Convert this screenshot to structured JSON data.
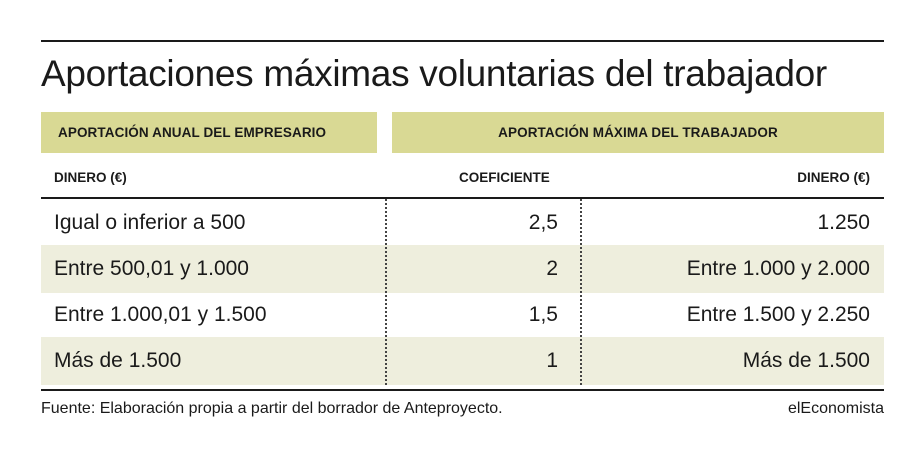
{
  "title": "Aportaciones máximas voluntarias del trabajador",
  "header": {
    "left": "APORTACIÓN ANUAL DEL EMPRESARIO",
    "right": "APORTACIÓN MÁXIMA DEL TRABAJADOR"
  },
  "subheader": {
    "dinero_left": "DINERO (€)",
    "coeficiente": "COEFICIENTE",
    "dinero_right": "DINERO (€)"
  },
  "rows": [
    {
      "empresario": "Igual o inferior a 500",
      "coeficiente": "2,5",
      "trabajador": "1.250"
    },
    {
      "empresario": "Entre 500,01 y 1.000",
      "coeficiente": "2",
      "trabajador": "Entre 1.000 y 2.000"
    },
    {
      "empresario": "Entre 1.000,01 y 1.500",
      "coeficiente": "1,5",
      "trabajador": "Entre 1.500 y 2.250"
    },
    {
      "empresario": "Más de 1.500",
      "coeficiente": "1",
      "trabajador": "Más de 1.500"
    }
  ],
  "source": "Fuente: Elaboración propia a partir del borrador de Anteproyecto.",
  "brand": "elEconomista",
  "colors": {
    "header_band": "#d9d994",
    "row_shade": "#eeeedd",
    "rule": "#1a1a1a"
  },
  "chart_data": {
    "type": "table",
    "title": "Aportaciones máximas voluntarias del trabajador",
    "column_groups": [
      "APORTACIÓN ANUAL DEL EMPRESARIO",
      "APORTACIÓN MÁXIMA DEL TRABAJADOR"
    ],
    "columns": [
      "DINERO (€)",
      "COEFICIENTE",
      "DINERO (€)"
    ],
    "rows": [
      [
        "Igual o inferior a 500",
        "2,5",
        "1.250"
      ],
      [
        "Entre 500,01 y 1.000",
        "2",
        "Entre 1.000 y 2.000"
      ],
      [
        "Entre 1.000,01 y 1.500",
        "1,5",
        "Entre 1.500 y 2.250"
      ],
      [
        "Más de 1.500",
        "1",
        "Más de 1.500"
      ]
    ]
  }
}
